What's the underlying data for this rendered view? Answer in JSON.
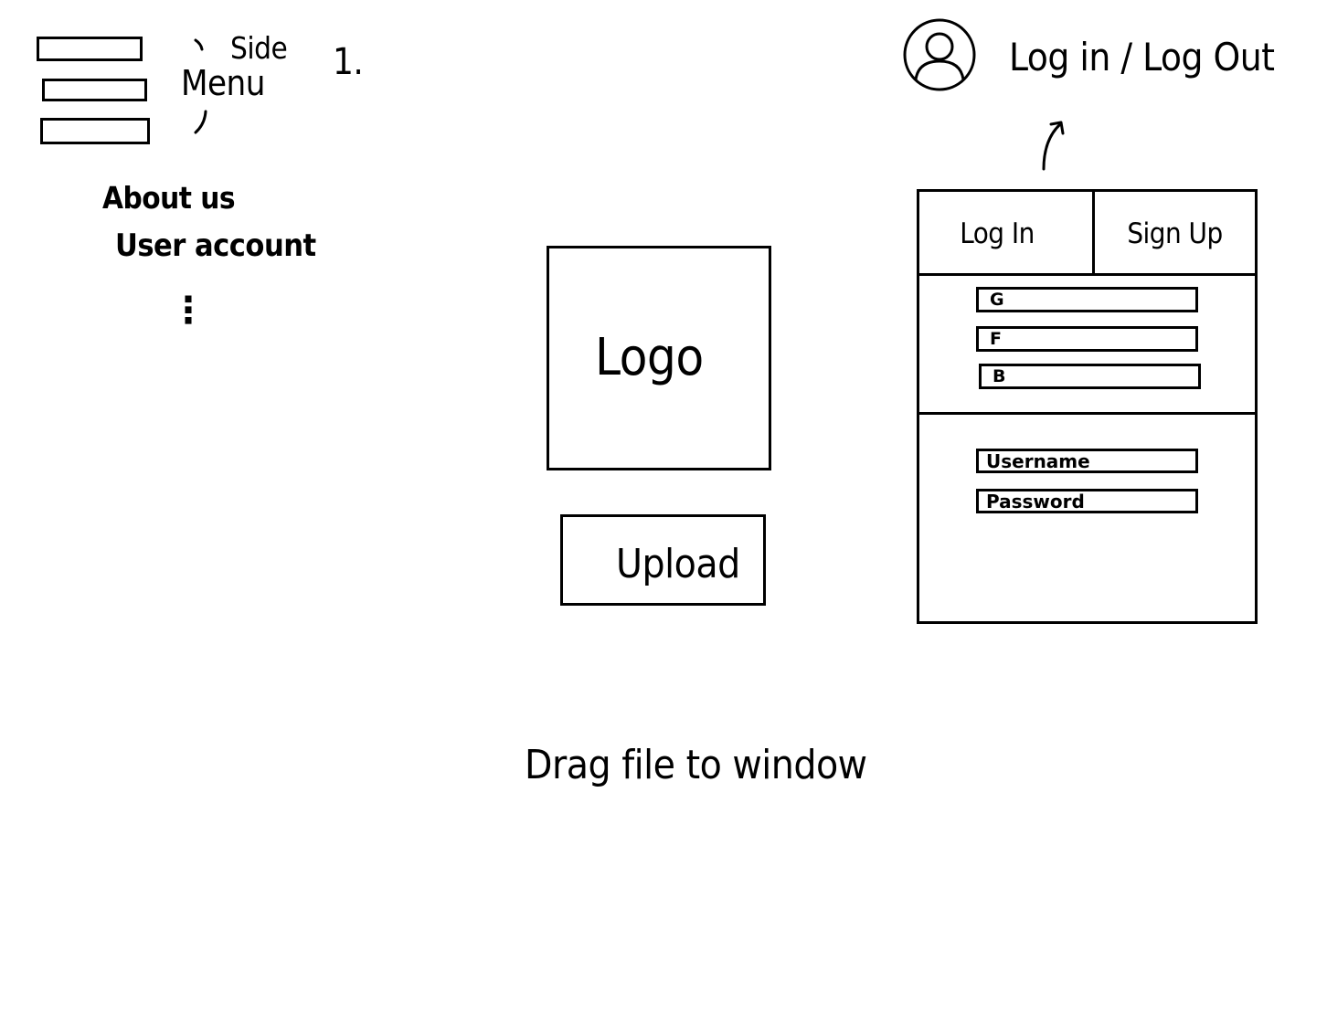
{
  "side_menu": {
    "label_line1": "Side",
    "label_line2": "Menu",
    "step_number": "1.",
    "items": [
      {
        "label": "About us"
      },
      {
        "label": "User account"
      }
    ],
    "more": "⋮"
  },
  "account": {
    "icon": "user-circle-icon",
    "login_logout_label": "Log in / Log Out"
  },
  "main": {
    "logo_label": "Logo",
    "upload_label": "Upload",
    "drag_hint": "Drag file to window"
  },
  "login_panel": {
    "tabs": [
      {
        "label": "Log In"
      },
      {
        "label": "Sign Up"
      }
    ],
    "oauth_buttons": [
      {
        "label": "G"
      },
      {
        "label": "F"
      },
      {
        "label": "B"
      }
    ],
    "username_placeholder": "Username",
    "password_placeholder": "Password"
  }
}
